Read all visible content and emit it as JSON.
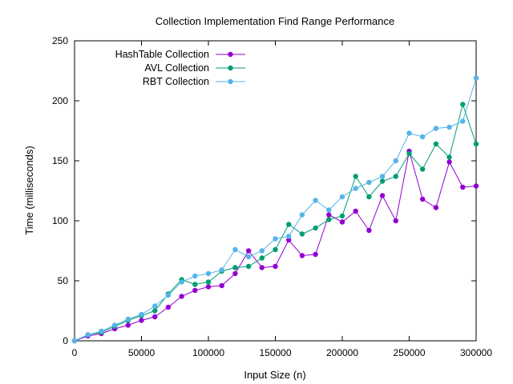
{
  "chart_data": {
    "type": "line",
    "title": "Collection Implementation Find Range Performance",
    "xlabel": "Input Size (n)",
    "ylabel": "Time (milliseconds)",
    "xlim": [
      0,
      300000
    ],
    "ylim": [
      0,
      250
    ],
    "xticks": [
      0,
      50000,
      100000,
      150000,
      200000,
      250000,
      300000
    ],
    "yticks": [
      0,
      50,
      100,
      150,
      200,
      250
    ],
    "grid": false,
    "legend_position": "top-left",
    "x": [
      0,
      10000,
      20000,
      30000,
      40000,
      50000,
      60000,
      70000,
      80000,
      90000,
      100000,
      110000,
      120000,
      130000,
      140000,
      150000,
      160000,
      170000,
      180000,
      190000,
      200000,
      210000,
      220000,
      230000,
      240000,
      250000,
      260000,
      270000,
      280000,
      290000,
      300000
    ],
    "series": [
      {
        "name": "HashTable Collection",
        "color": "#9400d3",
        "values": [
          0,
          4,
          6,
          10,
          13,
          17,
          20,
          28,
          37,
          42,
          45,
          46,
          56,
          75,
          61,
          62,
          84,
          71,
          72,
          105,
          99,
          108,
          92,
          121,
          100,
          158,
          118,
          111,
          149,
          128,
          129
        ]
      },
      {
        "name": "AVL Collection",
        "color": "#009e73",
        "values": [
          0,
          5,
          7,
          12,
          17,
          21,
          25,
          39,
          51,
          47,
          49,
          58,
          61,
          62,
          69,
          76,
          97,
          89,
          94,
          101,
          104,
          137,
          120,
          133,
          137,
          156,
          143,
          164,
          153,
          197,
          164
        ]
      },
      {
        "name": "RBT Collection",
        "color": "#56b4e9",
        "values": [
          0,
          5,
          8,
          13,
          18,
          22,
          29,
          38,
          49,
          54,
          56,
          59,
          76,
          70,
          75,
          85,
          87,
          105,
          117,
          109,
          120,
          127,
          132,
          137,
          150,
          173,
          170,
          177,
          178,
          183,
          219
        ]
      }
    ]
  }
}
